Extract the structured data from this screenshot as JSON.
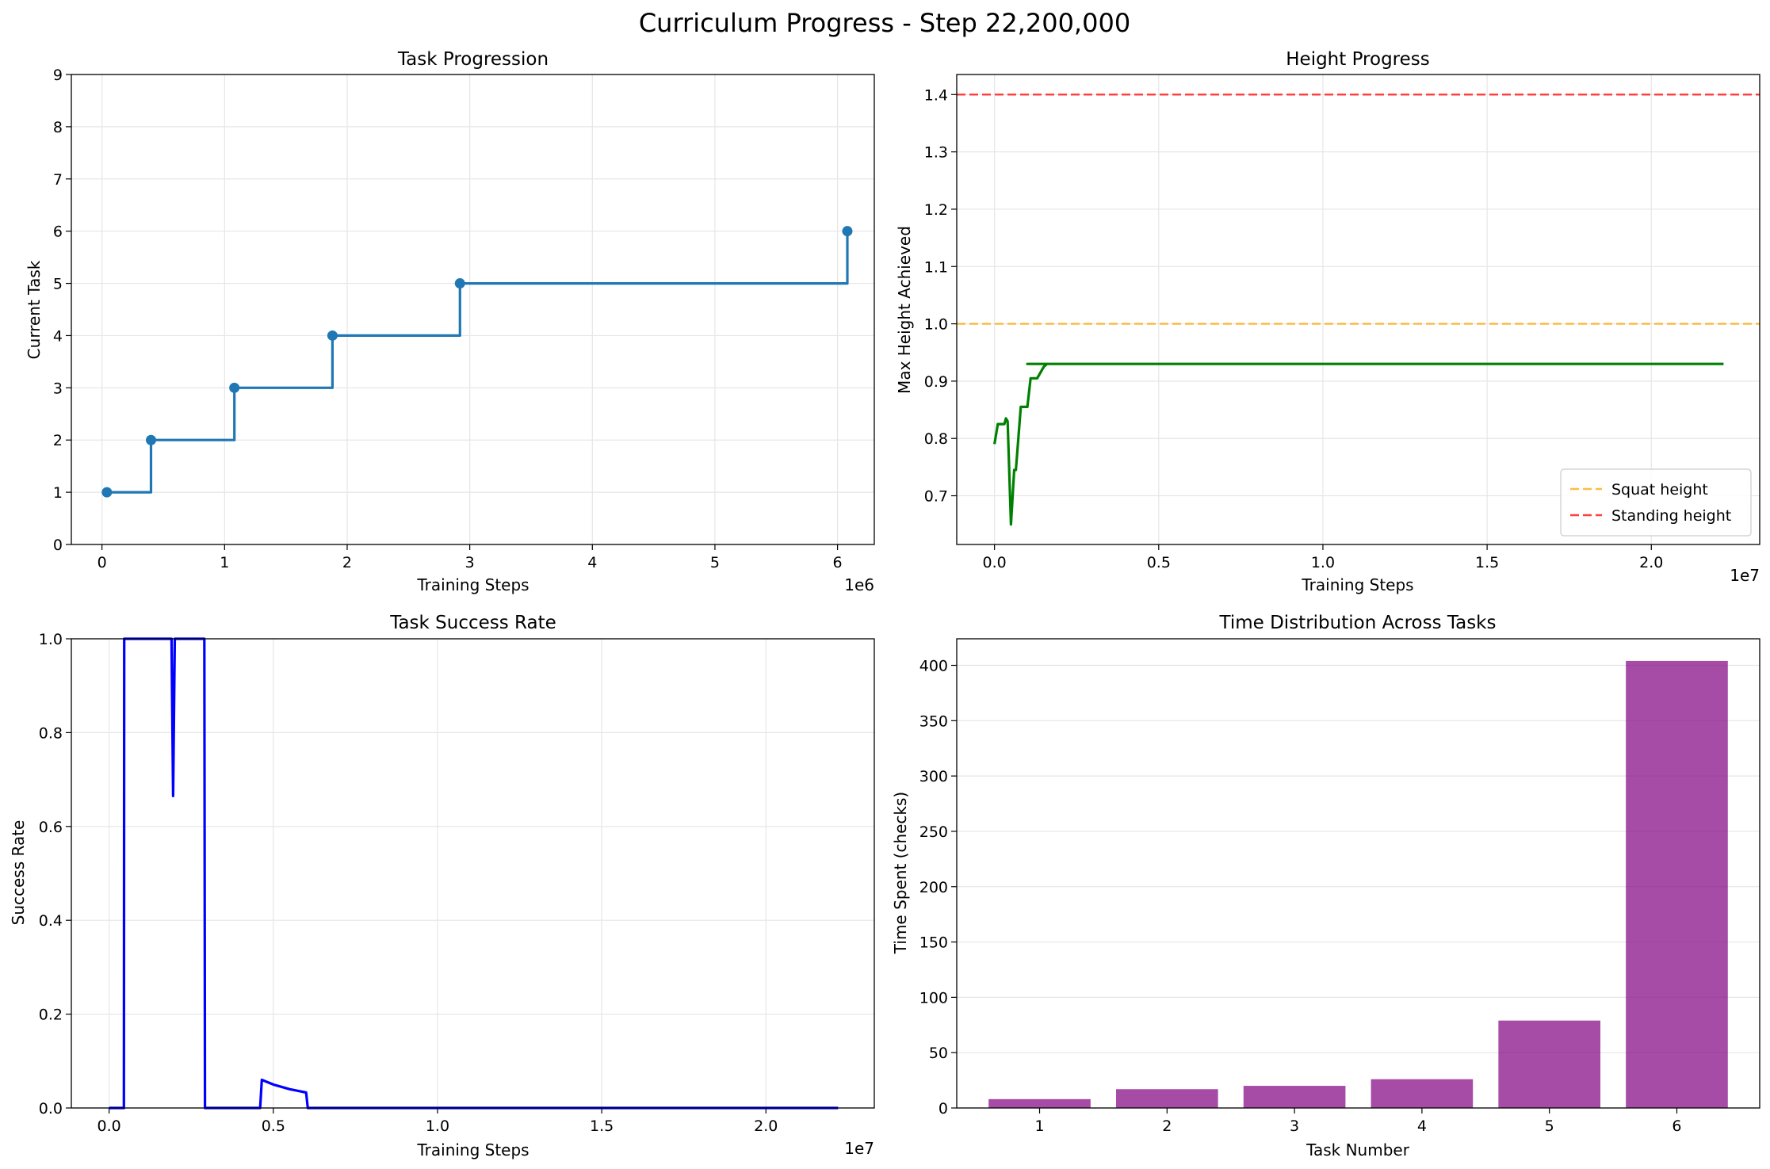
{
  "figure": {
    "suptitle": "Curriculum Progress - Step 22,200,000"
  },
  "chart_data": [
    {
      "id": "task-progression",
      "type": "line",
      "title": "Task Progression",
      "xlabel": "Training Steps",
      "ylabel": "Current Task",
      "x_offset_label": "1e6",
      "xlim": [
        -0.25,
        6.3
      ],
      "ylim": [
        0,
        9
      ],
      "xticks": [
        0,
        1,
        2,
        3,
        4,
        5,
        6
      ],
      "xtick_labels": [
        "0",
        "1",
        "2",
        "3",
        "4",
        "5",
        "6"
      ],
      "yticks": [
        0,
        1,
        2,
        3,
        4,
        5,
        6,
        7,
        8,
        9
      ],
      "ytick_labels": [
        "0",
        "1",
        "2",
        "3",
        "4",
        "5",
        "6",
        "7",
        "8",
        "9"
      ],
      "grid": true,
      "step": true,
      "color": "#1f77b4",
      "series": [
        {
          "x": [
            0.04,
            0.4,
            1.08,
            1.88,
            2.92,
            6.08
          ],
          "y": [
            1,
            2,
            3,
            4,
            5,
            6
          ],
          "markers": true
        }
      ]
    },
    {
      "id": "height-progress",
      "type": "line",
      "title": "Height Progress",
      "xlabel": "Training Steps",
      "ylabel": "Max Height Achieved",
      "x_offset_label": "1e7",
      "xlim": [
        -0.115,
        2.33
      ],
      "ylim": [
        0.615,
        1.435
      ],
      "xticks": [
        0,
        0.5,
        1.0,
        1.5,
        2.0
      ],
      "xtick_labels": [
        "0.0",
        "0.5",
        "1.0",
        "1.5",
        "2.0"
      ],
      "yticks": [
        0.7,
        0.8,
        0.9,
        1.0,
        1.1,
        1.2,
        1.3,
        1.4
      ],
      "ytick_labels": [
        "0.7",
        "0.8",
        "0.9",
        "1.0",
        "1.1",
        "1.2",
        "1.3",
        "1.4"
      ],
      "grid": true,
      "legend_position": "lower-right",
      "hlines": [
        {
          "name": "Squat height",
          "y": 1.0,
          "color": "#ffa500",
          "dash": "dashed"
        },
        {
          "name": "Standing height",
          "y": 1.4,
          "color": "#ff0000",
          "dash": "dashed"
        }
      ],
      "series": [
        {
          "color": "#008000",
          "x": [
            0.0,
            0.01,
            0.03,
            0.035,
            0.04,
            0.05,
            0.06,
            0.065,
            0.07,
            0.08,
            0.09,
            0.1,
            0.11,
            0.13,
            0.15,
            0.16,
            0.18,
            0.19,
            0.1,
            0.215,
            0.225,
            0.235,
            0.26,
            0.27,
            0.28,
            0.29,
            0.3,
            0.31,
            0.32,
            0.33,
            0.34,
            0.345,
            0.36,
            0.37,
            0.38,
            0.4,
            0.5,
            0.52,
            0.62,
            0.63,
            0.88,
            0.89,
            0.955,
            0.96,
            1.1,
            1.5,
            2.0,
            2.1,
            2.11,
            2.13,
            2.22
          ],
          "y": [
            0.79,
            0.825,
            0.825,
            0.835,
            0.83,
            0.65,
            0.745,
            0.745,
            0.78,
            0.855,
            0.855,
            0.855,
            0.905,
            0.905,
            0.925,
            0.93,
            0.93,
            0.93,
            0.93,
            0.93,
            0.93,
            0.93,
            0.93,
            0.93,
            0.93,
            0.93,
            0.93,
            0.93,
            0.93,
            0.93,
            0.93,
            0.93,
            0.93,
            0.93,
            0.93,
            0.93,
            0.93,
            0.93,
            0.93,
            0.93,
            0.93,
            0.93,
            0.93,
            0.93,
            0.93,
            0.93,
            0.93,
            0.93,
            0.93,
            0.93,
            0.93
          ]
        }
      ]
    },
    {
      "id": "task-success-rate",
      "type": "line",
      "title": "Task Success Rate",
      "xlabel": "Training Steps",
      "ylabel": "Success Rate",
      "x_offset_label": "1e7",
      "xlim": [
        -0.115,
        2.33
      ],
      "ylim": [
        0,
        1.0
      ],
      "xticks": [
        0,
        0.5,
        1.0,
        1.5,
        2.0
      ],
      "xtick_labels": [
        "0.0",
        "0.5",
        "1.0",
        "1.5",
        "2.0"
      ],
      "yticks": [
        0,
        0.2,
        0.4,
        0.6,
        0.8,
        1.0
      ],
      "ytick_labels": [
        "0.0",
        "0.2",
        "0.4",
        "0.6",
        "0.8",
        "1.0"
      ],
      "grid": true,
      "series": [
        {
          "color": "#0000ff",
          "x": [
            0.0,
            0.045,
            0.046,
            0.19,
            0.195,
            0.2,
            0.29,
            0.292,
            0.46,
            0.465,
            0.5,
            0.55,
            0.6,
            0.605,
            2.22
          ],
          "y": [
            0.0,
            0.0,
            1.0,
            1.0,
            0.665,
            1.0,
            1.0,
            0.0,
            0.0,
            0.06,
            0.05,
            0.04,
            0.033,
            0.0,
            0.0
          ]
        }
      ]
    },
    {
      "id": "time-distribution",
      "type": "bar",
      "title": "Time Distribution Across Tasks",
      "xlabel": "Task Number",
      "ylabel": "Time Spent (checks)",
      "ylim": [
        0,
        424
      ],
      "yticks": [
        0,
        50,
        100,
        150,
        200,
        250,
        300,
        350,
        400
      ],
      "ytick_labels": [
        "0",
        "50",
        "100",
        "150",
        "200",
        "250",
        "300",
        "350",
        "400"
      ],
      "grid": true,
      "color": "#800080",
      "categories": [
        "1",
        "2",
        "3",
        "4",
        "5",
        "6"
      ],
      "values": [
        8,
        17,
        20,
        26,
        79,
        404
      ]
    }
  ]
}
